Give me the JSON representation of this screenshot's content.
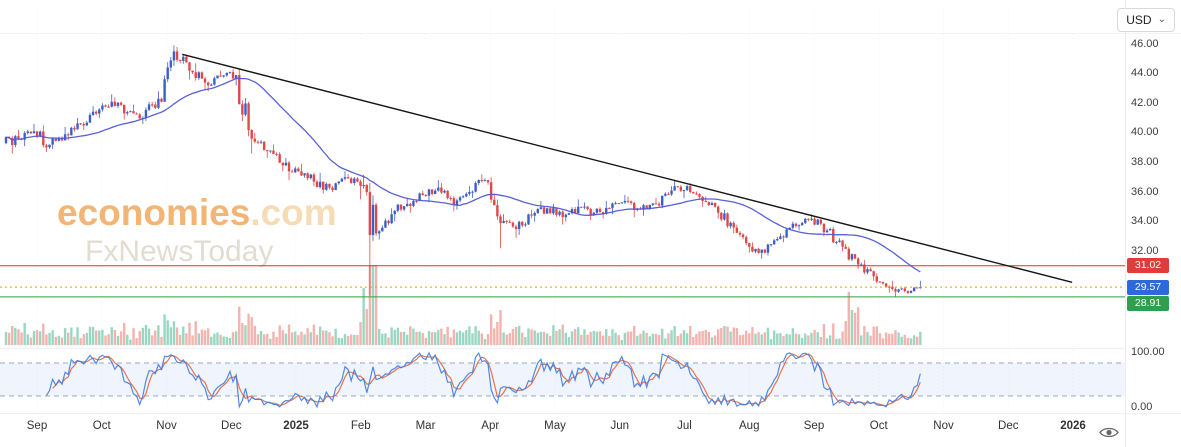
{
  "toolbar": {
    "currency": "USD",
    "chevron": "⌄"
  },
  "watermark": {
    "brand": "economies",
    "suffix": ".com",
    "subbrand": "FxNewsToday"
  },
  "price_axis": {
    "tick_labels": [
      "46.00",
      "44.00",
      "42.00",
      "40.00",
      "38.00",
      "36.00",
      "34.00",
      "32.00"
    ]
  },
  "price_tags": [
    {
      "text": "31.02",
      "value": 31.02,
      "bg": "#df3c3c"
    },
    {
      "text": "29.57",
      "value": 29.57,
      "bg": "#2d68dd"
    },
    {
      "text": "28.91",
      "value": 28.91,
      "bg": "#2e9e4f"
    }
  ],
  "oscillator_axis": {
    "tick_labels": [
      "100.00",
      "0.00"
    ]
  },
  "time_axis": {
    "labels": [
      "Sep",
      "Oct",
      "Nov",
      "Dec",
      "2025",
      "Feb",
      "Mar",
      "Apr",
      "May",
      "Jun",
      "Jul",
      "Aug",
      "Sep",
      "Oct",
      "Nov",
      "Dec",
      "2026"
    ]
  },
  "chart_data": {
    "type": "candlestick",
    "currency": "USD",
    "x_labels": [
      "Sep",
      "Oct",
      "Nov",
      "Dec",
      "2025",
      "Feb",
      "Mar",
      "Apr",
      "May",
      "Jun",
      "Jul",
      "Aug",
      "Sep",
      "Oct",
      "Nov",
      "Dec",
      "2026"
    ],
    "visible_price_range": [
      25.7,
      48.4
    ],
    "price_ticks": [
      46,
      44,
      42,
      40,
      38,
      36,
      34,
      32
    ],
    "last_price": 29.57,
    "weekly_ohlc": [
      [
        39.3,
        40.2,
        38.6,
        39.6
      ],
      [
        39.6,
        40.6,
        39.1,
        40.1
      ],
      [
        40.1,
        40.5,
        38.7,
        39.2
      ],
      [
        39.2,
        40.4,
        38.9,
        39.9
      ],
      [
        39.9,
        41.0,
        39.5,
        40.6
      ],
      [
        40.6,
        41.8,
        40.2,
        41.3
      ],
      [
        41.3,
        42.6,
        41.0,
        42.1
      ],
      [
        42.1,
        42.4,
        40.9,
        41.4
      ],
      [
        41.4,
        41.9,
        40.6,
        41.0
      ],
      [
        41.0,
        42.8,
        40.8,
        42.3
      ],
      [
        42.3,
        45.9,
        42.1,
        45.5
      ],
      [
        45.5,
        45.8,
        43.6,
        44.2
      ],
      [
        44.2,
        44.7,
        42.9,
        43.4
      ],
      [
        43.4,
        44.2,
        42.8,
        43.8
      ],
      [
        43.8,
        44.3,
        43.2,
        43.9
      ],
      [
        43.9,
        44.0,
        38.6,
        39.6
      ],
      [
        39.6,
        40.0,
        38.3,
        38.8
      ],
      [
        38.8,
        39.2,
        37.4,
        37.8
      ],
      [
        37.8,
        38.3,
        36.8,
        37.4
      ],
      [
        37.4,
        37.9,
        36.4,
        36.7
      ],
      [
        36.7,
        37.3,
        35.9,
        36.3
      ],
      [
        36.3,
        37.4,
        36.0,
        37.0
      ],
      [
        37.0,
        37.2,
        35.5,
        36.4
      ],
      [
        36.4,
        36.6,
        29.0,
        33.2
      ],
      [
        33.2,
        34.9,
        32.8,
        34.5
      ],
      [
        34.5,
        35.6,
        34.0,
        35.2
      ],
      [
        35.2,
        36.1,
        34.6,
        35.8
      ],
      [
        35.8,
        36.8,
        35.3,
        36.3
      ],
      [
        36.3,
        36.6,
        34.7,
        35.1
      ],
      [
        35.1,
        36.4,
        34.8,
        36.0
      ],
      [
        36.0,
        37.2,
        35.6,
        36.8
      ],
      [
        36.8,
        37.0,
        32.2,
        33.9
      ],
      [
        33.9,
        34.5,
        32.9,
        33.5
      ],
      [
        33.5,
        34.8,
        33.1,
        34.4
      ],
      [
        34.4,
        35.4,
        34.0,
        34.9
      ],
      [
        34.9,
        35.2,
        33.8,
        34.3
      ],
      [
        34.3,
        35.5,
        34.0,
        35.0
      ],
      [
        35.0,
        35.3,
        34.1,
        34.6
      ],
      [
        34.6,
        35.4,
        34.2,
        34.9
      ],
      [
        34.9,
        35.8,
        34.5,
        35.4
      ],
      [
        35.4,
        35.7,
        34.3,
        34.8
      ],
      [
        34.8,
        35.6,
        34.4,
        35.2
      ],
      [
        35.2,
        36.4,
        34.9,
        36.1
      ],
      [
        36.1,
        36.8,
        35.6,
        36.4
      ],
      [
        36.4,
        36.6,
        35.0,
        35.4
      ],
      [
        35.4,
        35.7,
        34.2,
        34.6
      ],
      [
        34.6,
        34.8,
        33.2,
        33.6
      ],
      [
        33.6,
        33.8,
        31.9,
        32.3
      ],
      [
        32.3,
        32.6,
        31.5,
        31.9
      ],
      [
        31.9,
        33.2,
        31.7,
        33.0
      ],
      [
        33.0,
        34.0,
        32.6,
        33.7
      ],
      [
        33.7,
        34.5,
        33.4,
        34.2
      ],
      [
        34.2,
        34.4,
        33.0,
        33.4
      ],
      [
        33.4,
        33.6,
        32.0,
        32.3
      ],
      [
        32.3,
        32.5,
        30.8,
        31.1
      ],
      [
        31.1,
        31.4,
        30.0,
        30.3
      ],
      [
        30.3,
        30.5,
        29.2,
        29.6
      ],
      [
        29.6,
        30.0,
        28.91,
        29.3
      ],
      [
        29.3,
        30.0,
        29.1,
        29.57
      ]
    ],
    "volume_spike_weeks": [
      23,
      54
    ],
    "levels": [
      {
        "price": 31.02,
        "style": "solid",
        "color": "#e03131",
        "role": "resistance"
      },
      {
        "price": 29.57,
        "style": "dotted",
        "color": "#d9a406",
        "role": "last-price"
      },
      {
        "price": 28.91,
        "style": "solid",
        "color": "#2f9e44",
        "role": "support"
      }
    ],
    "trendline": {
      "x1_frac": 0.162,
      "price1": 45.3,
      "x2_frac": 0.953,
      "price2": 29.9,
      "color": "#161616"
    },
    "moving_average": {
      "period": 30,
      "color": "#5059d6"
    },
    "oscillator": {
      "type": "stochastic",
      "k_period": 14,
      "d_period": 3,
      "bands": [
        80,
        20
      ],
      "range": [
        0,
        100
      ],
      "k_color": "#3f7de0",
      "d_color": "#e2663f"
    },
    "colors": {
      "up": "#3a5fc8",
      "down": "#e04848",
      "volume_up": "#8fd3bd",
      "volume_down": "#f2aba6"
    }
  }
}
